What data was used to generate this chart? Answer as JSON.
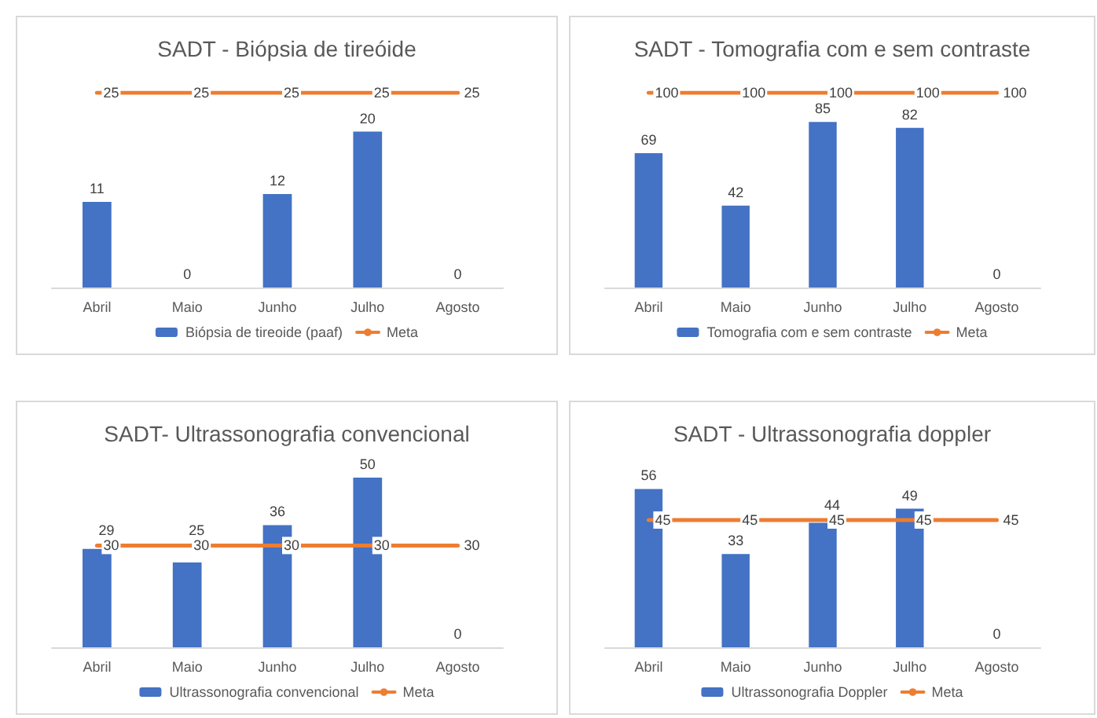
{
  "chart_data": [
    {
      "type": "bar",
      "title": "SADT - Biópsia de tireóide",
      "categories": [
        "Abril",
        "Maio",
        "Junho",
        "Julho",
        "Agosto"
      ],
      "series": [
        {
          "name": "Biópsia de tireoide (paaf)",
          "color": "#4472c4",
          "values": [
            11,
            0,
            12,
            20,
            0
          ]
        },
        {
          "name": "Meta",
          "type": "line",
          "color": "#ed7d31",
          "values": [
            25,
            25,
            25,
            25,
            25
          ]
        }
      ],
      "data_labels": true,
      "grid": false,
      "legend": "bottom",
      "tick_labels": "x",
      "marker": "none",
      "line_style": "solid"
    },
    {
      "type": "bar",
      "title": "SADT - Tomografia com e sem contraste",
      "categories": [
        "Abril",
        "Maio",
        "Junho",
        "Julho",
        "Agosto"
      ],
      "series": [
        {
          "name": "Tomografia com e sem contraste",
          "color": "#4472c4",
          "values": [
            69,
            42,
            85,
            82,
            0
          ]
        },
        {
          "name": "Meta",
          "type": "line",
          "color": "#ed7d31",
          "values": [
            100,
            100,
            100,
            100,
            100
          ]
        }
      ],
      "data_labels": true,
      "grid": false,
      "legend": "bottom",
      "tick_labels": "x",
      "marker": "none",
      "line_style": "solid"
    },
    {
      "type": "bar",
      "title": "SADT- Ultrassonografia convencional",
      "categories": [
        "Abril",
        "Maio",
        "Junho",
        "Julho",
        "Agosto"
      ],
      "series": [
        {
          "name": "Ultrassonografia convencional",
          "color": "#4472c4",
          "values": [
            29,
            25,
            36,
            50,
            0
          ]
        },
        {
          "name": "Meta",
          "type": "line",
          "color": "#ed7d31",
          "values": [
            30,
            30,
            30,
            30,
            30
          ]
        }
      ],
      "data_labels": true,
      "grid": false,
      "legend": "bottom",
      "tick_labels": "x",
      "marker": "none",
      "line_style": "solid"
    },
    {
      "type": "bar",
      "title": "SADT - Ultrassonografia doppler",
      "categories": [
        "Abril",
        "Maio",
        "Junho",
        "Julho",
        "Agosto"
      ],
      "series": [
        {
          "name": "Ultrassonografia Doppler",
          "color": "#4472c4",
          "values": [
            56,
            33,
            44,
            49,
            0
          ]
        },
        {
          "name": "Meta",
          "type": "line",
          "color": "#ed7d31",
          "values": [
            45,
            45,
            45,
            45,
            45
          ]
        }
      ],
      "data_labels": true,
      "grid": false,
      "legend": "bottom",
      "tick_labels": "x",
      "marker": "none",
      "line_style": "solid"
    }
  ]
}
